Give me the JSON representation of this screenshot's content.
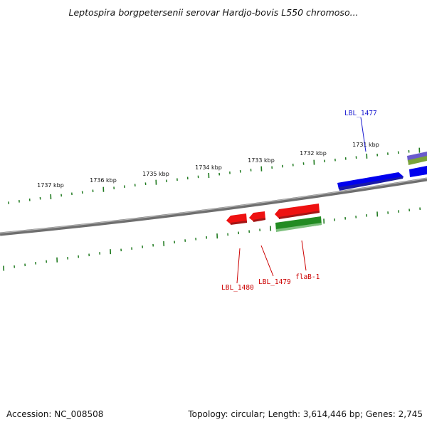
{
  "title": "Leptospira borgpetersenii serovar Hardjo-bovis L550 chromoso...",
  "accession_text": "Accession: NC_008508",
  "summary_text": "Topology: circular; Length: 3,614,446 bp; Genes: 2,745",
  "ticks": [
    {
      "label": "1731 kbp"
    },
    {
      "label": "1732 kbp"
    },
    {
      "label": "1733 kbp"
    },
    {
      "label": "1734 kbp"
    },
    {
      "label": "1735 kbp"
    },
    {
      "label": "1736 kbp"
    },
    {
      "label": "1737 kbp"
    }
  ],
  "genes": [
    {
      "label": "LBL_1477",
      "color": "#1a1ad0"
    },
    {
      "label": "LBL_1479",
      "color": "#cc0000"
    },
    {
      "label": "LBL_1480",
      "color": "#cc0000"
    },
    {
      "label": "flaB-1",
      "color": "#cc0000"
    }
  ],
  "colors": {
    "forward_gene": "#0000ee",
    "reverse_gene": "#ee1111",
    "cds_feature": "#228b22",
    "tick": "#1f7a1f",
    "backbone": "#777777"
  }
}
